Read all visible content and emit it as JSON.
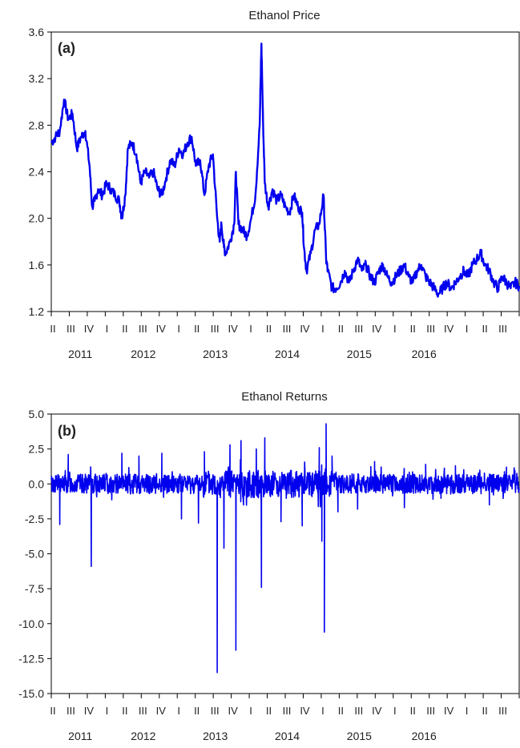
{
  "chart_data": [
    {
      "type": "line",
      "title": "Ethanol Price",
      "panel_label": "(a)",
      "xlabel": "",
      "ylabel": "",
      "ylim": [
        1.2,
        3.6
      ],
      "yticks": [
        "1.2",
        "1.6",
        "2.0",
        "2.4",
        "2.8",
        "3.2",
        "3.6"
      ],
      "ytick_values": [
        1.2,
        1.6,
        2.0,
        2.4,
        2.8,
        3.2,
        3.6
      ],
      "xlim": [
        2011.25,
        2016.75
      ],
      "quarter_ticks": [
        "II",
        "III",
        "IV",
        "I",
        "II",
        "III",
        "IV",
        "I",
        "II",
        "III",
        "IV",
        "I",
        "II",
        "III",
        "IV",
        "I",
        "II",
        "III",
        "IV",
        "I",
        "II",
        "III",
        "IV",
        "I",
        "II",
        "III"
      ],
      "year_labels": [
        "2011",
        "2012",
        "2013",
        "2014",
        "2015",
        "2016"
      ],
      "grid": false,
      "line_color": "#0000ee",
      "series": [
        {
          "x": [
            2011.25,
            2011.3,
            2011.35,
            2011.4,
            2011.45,
            2011.5,
            2011.55,
            2011.6,
            2011.65,
            2011.7,
            2011.73,
            2011.76,
            2011.8,
            2011.85,
            2011.9,
            2011.95,
            2012.0,
            2012.05,
            2012.08,
            2012.12,
            2012.15,
            2012.2,
            2012.25,
            2012.3,
            2012.35,
            2012.4,
            2012.45,
            2012.5,
            2012.55,
            2012.6,
            2012.65,
            2012.7,
            2012.75,
            2012.8,
            2012.85,
            2012.9,
            2012.95,
            2013.0,
            2013.05,
            2013.1,
            2013.15,
            2013.2,
            2013.23,
            2013.25,
            2013.28,
            2013.3,
            2013.35,
            2013.4,
            2013.42,
            2013.45,
            2013.5,
            2013.55,
            2013.6,
            2013.65,
            2013.7,
            2013.72,
            2013.74,
            2013.76,
            2013.8,
            2013.85,
            2013.9,
            2013.95,
            2014.0,
            2014.05,
            2014.1,
            2014.15,
            2014.2,
            2014.22,
            2014.25,
            2014.3,
            2014.35,
            2014.4,
            2014.45,
            2014.48,
            2014.5,
            2014.55,
            2014.6,
            2014.65,
            2014.7,
            2014.75,
            2014.8,
            2014.85,
            2014.9,
            2014.95,
            2015.0,
            2015.05,
            2015.1,
            2015.15,
            2015.2,
            2015.25,
            2015.3,
            2015.35,
            2015.4,
            2015.45,
            2015.5,
            2015.55,
            2015.6,
            2015.65,
            2015.7,
            2015.75,
            2015.8,
            2015.85,
            2015.9,
            2015.95,
            2016.0,
            2016.05,
            2016.1,
            2016.15,
            2016.2,
            2016.25,
            2016.3,
            2016.35,
            2016.4,
            2016.45,
            2016.5,
            2016.55,
            2016.6,
            2016.65,
            2016.7,
            2016.75
          ],
          "y": [
            2.65,
            2.7,
            2.75,
            3.02,
            2.85,
            2.9,
            2.6,
            2.7,
            2.75,
            2.45,
            2.1,
            2.15,
            2.25,
            2.2,
            2.3,
            2.25,
            2.2,
            2.15,
            2.0,
            2.2,
            2.6,
            2.65,
            2.55,
            2.3,
            2.4,
            2.35,
            2.4,
            2.25,
            2.2,
            2.35,
            2.5,
            2.45,
            2.6,
            2.55,
            2.65,
            2.7,
            2.45,
            2.5,
            2.2,
            2.45,
            2.55,
            2.0,
            1.8,
            1.95,
            1.75,
            1.7,
            1.8,
            1.95,
            2.4,
            1.95,
            1.9,
            1.85,
            2.0,
            2.2,
            2.8,
            3.5,
            2.8,
            2.3,
            2.1,
            2.25,
            2.15,
            2.2,
            2.1,
            2.05,
            2.2,
            2.1,
            2.05,
            1.75,
            1.55,
            1.7,
            1.9,
            1.95,
            2.2,
            1.65,
            1.55,
            1.4,
            1.4,
            1.45,
            1.55,
            1.45,
            1.55,
            1.65,
            1.55,
            1.6,
            1.5,
            1.45,
            1.55,
            1.6,
            1.5,
            1.45,
            1.5,
            1.55,
            1.6,
            1.5,
            1.45,
            1.55,
            1.6,
            1.5,
            1.45,
            1.4,
            1.35,
            1.4,
            1.45,
            1.4,
            1.45,
            1.5,
            1.55,
            1.5,
            1.6,
            1.65,
            1.7,
            1.6,
            1.55,
            1.45,
            1.4,
            1.5,
            1.45,
            1.4,
            1.45,
            1.42
          ]
        }
      ]
    },
    {
      "type": "line",
      "title": "Ethanol Returns",
      "panel_label": "(b)",
      "xlabel": "",
      "ylabel": "",
      "ylim": [
        -15.0,
        5.0
      ],
      "yticks": [
        "-15.0",
        "-12.5",
        "-10.0",
        "-7.5",
        "-5.0",
        "-2.5",
        "0.0",
        "2.5",
        "5.0"
      ],
      "ytick_values": [
        -15.0,
        -12.5,
        -10.0,
        -7.5,
        -5.0,
        -2.5,
        0.0,
        2.5,
        5.0
      ],
      "xlim": [
        2011.25,
        2016.75
      ],
      "quarter_ticks": [
        "II",
        "III",
        "IV",
        "I",
        "II",
        "III",
        "IV",
        "I",
        "II",
        "III",
        "IV",
        "I",
        "II",
        "III",
        "IV",
        "I",
        "II",
        "III",
        "IV",
        "I",
        "II",
        "III",
        "IV",
        "I",
        "II",
        "III"
      ],
      "year_labels": [
        "2011",
        "2012",
        "2013",
        "2014",
        "2015",
        "2016"
      ],
      "grid": false,
      "line_color": "#0000ee",
      "series": [
        {
          "noise_amplitude": 0.7,
          "spikes": [
            {
              "x": 2011.35,
              "y": -2.9
            },
            {
              "x": 2011.45,
              "y": 2.1
            },
            {
              "x": 2011.72,
              "y": -5.9
            },
            {
              "x": 2012.08,
              "y": 2.2
            },
            {
              "x": 2012.28,
              "y": 2.0
            },
            {
              "x": 2012.55,
              "y": 2.2
            },
            {
              "x": 2012.78,
              "y": -2.5
            },
            {
              "x": 2012.98,
              "y": -2.8
            },
            {
              "x": 2013.05,
              "y": 2.3
            },
            {
              "x": 2013.2,
              "y": -13.5
            },
            {
              "x": 2013.28,
              "y": -4.6
            },
            {
              "x": 2013.35,
              "y": 2.8
            },
            {
              "x": 2013.42,
              "y": -11.9
            },
            {
              "x": 2013.48,
              "y": 3.1
            },
            {
              "x": 2013.66,
              "y": 2.5
            },
            {
              "x": 2013.72,
              "y": -7.4
            },
            {
              "x": 2013.76,
              "y": 3.3
            },
            {
              "x": 2013.95,
              "y": -2.7
            },
            {
              "x": 2014.2,
              "y": -3.0
            },
            {
              "x": 2014.4,
              "y": 2.6
            },
            {
              "x": 2014.43,
              "y": -4.1
            },
            {
              "x": 2014.46,
              "y": -10.6
            },
            {
              "x": 2014.48,
              "y": 4.3
            },
            {
              "x": 2014.55,
              "y": 2.0
            },
            {
              "x": 2014.62,
              "y": -2.0
            },
            {
              "x": 2014.85,
              "y": -1.8
            },
            {
              "x": 2015.05,
              "y": 1.6
            },
            {
              "x": 2015.4,
              "y": -1.7
            },
            {
              "x": 2015.65,
              "y": 1.4
            },
            {
              "x": 2016.0,
              "y": 1.3
            },
            {
              "x": 2016.4,
              "y": -1.5
            },
            {
              "x": 2016.6,
              "y": 1.2
            }
          ]
        }
      ]
    }
  ]
}
